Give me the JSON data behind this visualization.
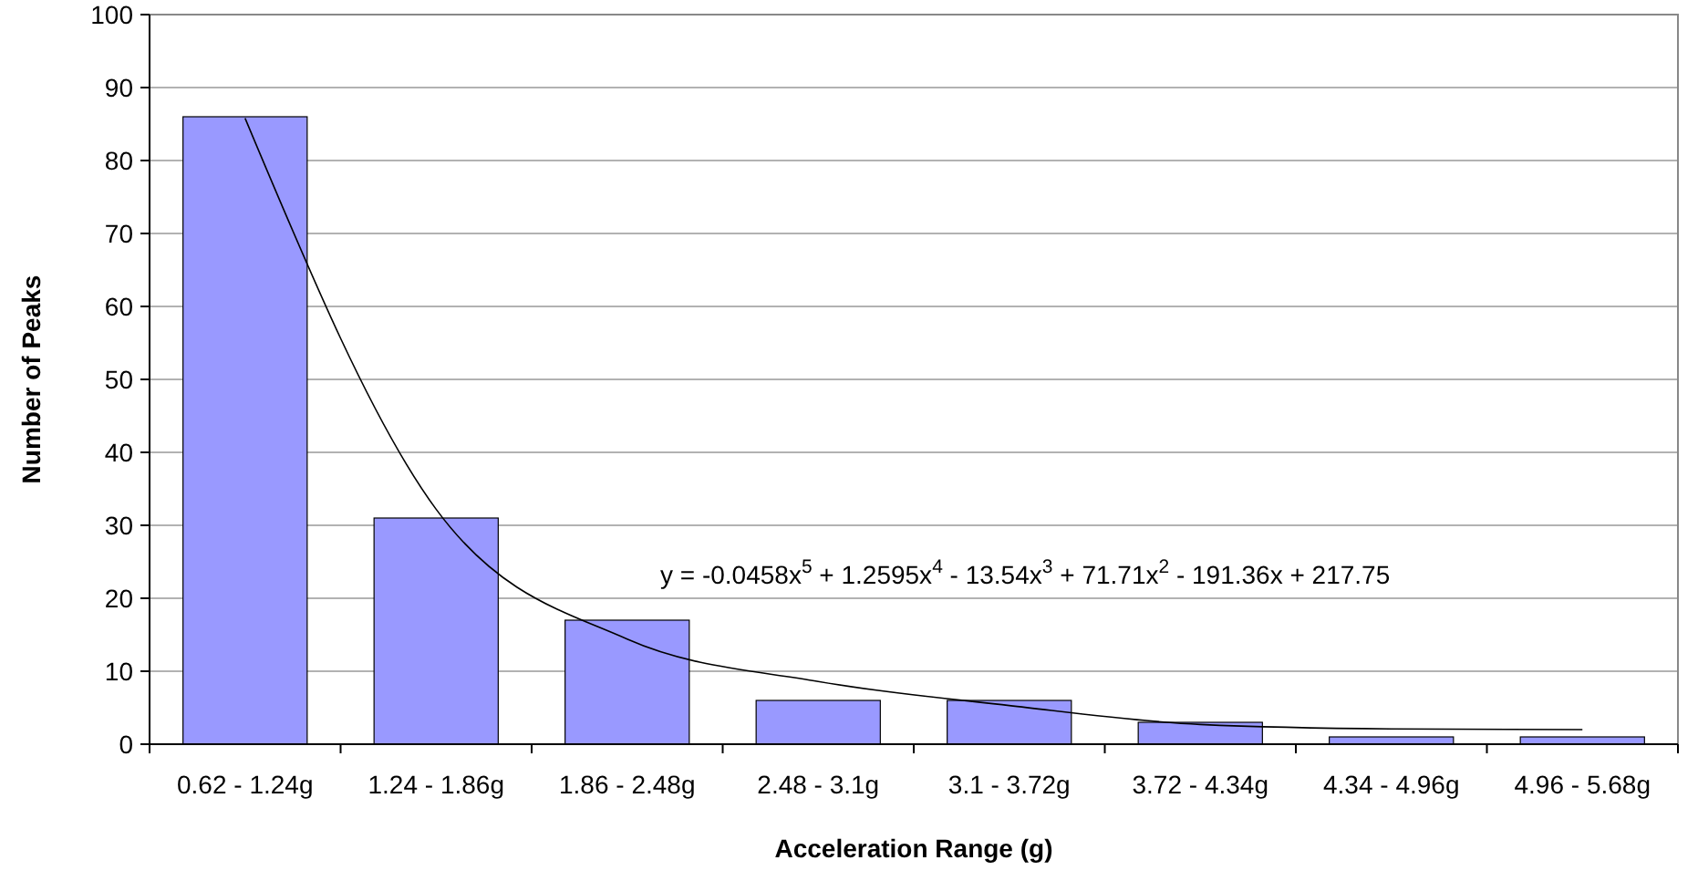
{
  "chart_data": {
    "type": "bar",
    "xlabel": "Acceleration Range (g)",
    "ylabel": "Number of Peaks",
    "categories": [
      "0.62 - 1.24g",
      "1.24 - 1.86g",
      "1.86 - 2.48g",
      "2.48 - 3.1g",
      "3.1 - 3.72g",
      "3.72 - 4.34g",
      "4.34 - 4.96g",
      "4.96 - 5.68g"
    ],
    "series": [
      {
        "color": "#9999ff",
        "values": [
          86,
          31,
          17,
          6,
          6,
          3,
          1,
          1
        ]
      },
      {
        "type": "line",
        "color": "#000000",
        "values": [
          85.8,
          32.2,
          14.4,
          8.6,
          5.3,
          2.7,
          2.1,
          2.0
        ]
      }
    ],
    "ylim": [
      0,
      100
    ],
    "yticks": [
      0,
      10,
      20,
      30,
      40,
      50,
      60,
      70,
      80,
      90,
      100
    ],
    "grid": "y",
    "marker": "none",
    "line_style": "solid",
    "annotations": [
      "y = -0.0458x$^{5}$ + 1.2595x$^{4}$ - 13.54x$^{3}$ + 71.71x$^{2}$ - 191.36x + 217.75"
    ]
  }
}
